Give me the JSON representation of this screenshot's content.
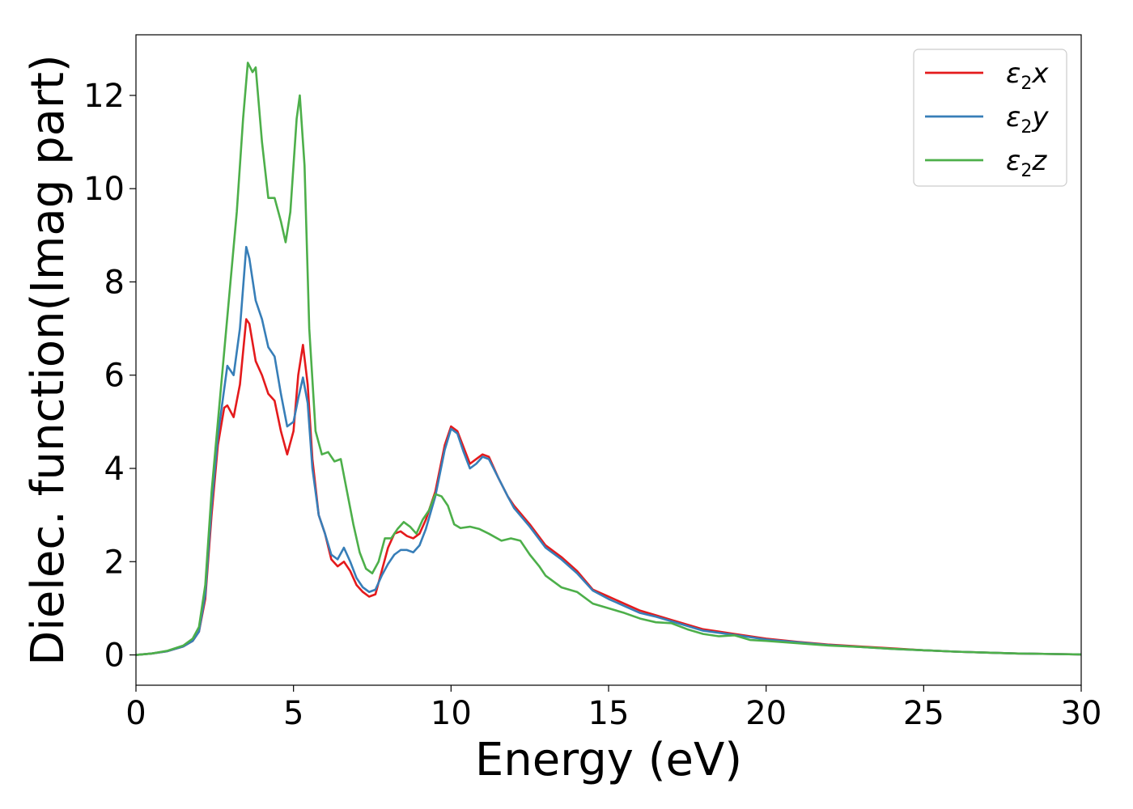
{
  "chart_data": {
    "type": "line",
    "title": "",
    "xlabel": "Energy (eV)",
    "ylabel": "Dielec. function(Imag part)",
    "xlim": [
      0,
      30
    ],
    "ylim": [
      -0.65,
      13.3
    ],
    "xticks": [
      0,
      5,
      10,
      15,
      20,
      25,
      30
    ],
    "yticks": [
      0,
      2,
      4,
      6,
      8,
      10,
      12
    ],
    "grid": false,
    "legend_position": "top-right",
    "series": [
      {
        "name_base": "ε",
        "name_sub": "2",
        "name_suffix": "x",
        "color": "#e41a1c",
        "points": [
          [
            0,
            0
          ],
          [
            0.5,
            0.03
          ],
          [
            1.0,
            0.08
          ],
          [
            1.5,
            0.18
          ],
          [
            1.8,
            0.3
          ],
          [
            2.0,
            0.5
          ],
          [
            2.2,
            1.2
          ],
          [
            2.4,
            3.0
          ],
          [
            2.6,
            4.5
          ],
          [
            2.8,
            5.3
          ],
          [
            2.9,
            5.35
          ],
          [
            3.1,
            5.1
          ],
          [
            3.3,
            5.8
          ],
          [
            3.5,
            7.2
          ],
          [
            3.6,
            7.1
          ],
          [
            3.8,
            6.3
          ],
          [
            4.0,
            6.0
          ],
          [
            4.2,
            5.6
          ],
          [
            4.4,
            5.45
          ],
          [
            4.6,
            4.8
          ],
          [
            4.8,
            4.3
          ],
          [
            5.0,
            4.8
          ],
          [
            5.15,
            6.0
          ],
          [
            5.3,
            6.65
          ],
          [
            5.45,
            5.8
          ],
          [
            5.6,
            4.2
          ],
          [
            5.8,
            3.0
          ],
          [
            6.0,
            2.6
          ],
          [
            6.2,
            2.05
          ],
          [
            6.4,
            1.9
          ],
          [
            6.6,
            2.0
          ],
          [
            6.8,
            1.8
          ],
          [
            7.0,
            1.5
          ],
          [
            7.2,
            1.35
          ],
          [
            7.4,
            1.25
          ],
          [
            7.6,
            1.3
          ],
          [
            7.8,
            1.8
          ],
          [
            8.0,
            2.3
          ],
          [
            8.2,
            2.6
          ],
          [
            8.4,
            2.65
          ],
          [
            8.6,
            2.55
          ],
          [
            8.8,
            2.5
          ],
          [
            9.0,
            2.6
          ],
          [
            9.2,
            2.9
          ],
          [
            9.5,
            3.5
          ],
          [
            9.8,
            4.5
          ],
          [
            10.0,
            4.9
          ],
          [
            10.2,
            4.8
          ],
          [
            10.4,
            4.45
          ],
          [
            10.6,
            4.1
          ],
          [
            10.8,
            4.2
          ],
          [
            11.0,
            4.3
          ],
          [
            11.2,
            4.25
          ],
          [
            11.5,
            3.8
          ],
          [
            11.8,
            3.4
          ],
          [
            12.0,
            3.2
          ],
          [
            12.5,
            2.8
          ],
          [
            13.0,
            2.35
          ],
          [
            13.5,
            2.1
          ],
          [
            14.0,
            1.8
          ],
          [
            14.5,
            1.4
          ],
          [
            15.0,
            1.25
          ],
          [
            15.5,
            1.1
          ],
          [
            16.0,
            0.95
          ],
          [
            16.5,
            0.85
          ],
          [
            17.0,
            0.75
          ],
          [
            17.5,
            0.65
          ],
          [
            18.0,
            0.55
          ],
          [
            19.0,
            0.45
          ],
          [
            20.0,
            0.35
          ],
          [
            21.0,
            0.28
          ],
          [
            22.0,
            0.22
          ],
          [
            23.0,
            0.18
          ],
          [
            24.0,
            0.14
          ],
          [
            25.0,
            0.1
          ],
          [
            26.0,
            0.07
          ],
          [
            27.0,
            0.05
          ],
          [
            28.0,
            0.03
          ],
          [
            29.0,
            0.02
          ],
          [
            30.0,
            0.01
          ]
        ]
      },
      {
        "name_base": "ε",
        "name_sub": "2",
        "name_suffix": "y",
        "color": "#377eb8",
        "points": [
          [
            0,
            0
          ],
          [
            0.5,
            0.03
          ],
          [
            1.0,
            0.08
          ],
          [
            1.5,
            0.18
          ],
          [
            1.8,
            0.3
          ],
          [
            2.0,
            0.5
          ],
          [
            2.2,
            1.3
          ],
          [
            2.4,
            3.2
          ],
          [
            2.6,
            4.7
          ],
          [
            2.8,
            5.7
          ],
          [
            2.9,
            6.2
          ],
          [
            3.1,
            6.0
          ],
          [
            3.3,
            7.0
          ],
          [
            3.5,
            8.75
          ],
          [
            3.6,
            8.5
          ],
          [
            3.8,
            7.6
          ],
          [
            4.0,
            7.2
          ],
          [
            4.2,
            6.6
          ],
          [
            4.4,
            6.4
          ],
          [
            4.6,
            5.6
          ],
          [
            4.8,
            4.9
          ],
          [
            5.0,
            5.0
          ],
          [
            5.15,
            5.5
          ],
          [
            5.3,
            5.95
          ],
          [
            5.45,
            5.4
          ],
          [
            5.6,
            4.0
          ],
          [
            5.8,
            3.0
          ],
          [
            6.0,
            2.6
          ],
          [
            6.2,
            2.15
          ],
          [
            6.4,
            2.05
          ],
          [
            6.6,
            2.3
          ],
          [
            6.8,
            2.0
          ],
          [
            7.0,
            1.65
          ],
          [
            7.2,
            1.45
          ],
          [
            7.4,
            1.35
          ],
          [
            7.6,
            1.4
          ],
          [
            7.8,
            1.7
          ],
          [
            8.0,
            1.95
          ],
          [
            8.2,
            2.15
          ],
          [
            8.4,
            2.25
          ],
          [
            8.6,
            2.25
          ],
          [
            8.8,
            2.2
          ],
          [
            9.0,
            2.35
          ],
          [
            9.2,
            2.7
          ],
          [
            9.5,
            3.4
          ],
          [
            9.8,
            4.4
          ],
          [
            10.0,
            4.85
          ],
          [
            10.2,
            4.75
          ],
          [
            10.4,
            4.35
          ],
          [
            10.6,
            4.0
          ],
          [
            10.8,
            4.1
          ],
          [
            11.0,
            4.25
          ],
          [
            11.2,
            4.2
          ],
          [
            11.5,
            3.8
          ],
          [
            11.8,
            3.4
          ],
          [
            12.0,
            3.15
          ],
          [
            12.5,
            2.75
          ],
          [
            13.0,
            2.3
          ],
          [
            13.5,
            2.05
          ],
          [
            14.0,
            1.75
          ],
          [
            14.5,
            1.38
          ],
          [
            15.0,
            1.2
          ],
          [
            15.5,
            1.05
          ],
          [
            16.0,
            0.9
          ],
          [
            16.5,
            0.82
          ],
          [
            17.0,
            0.72
          ],
          [
            17.5,
            0.62
          ],
          [
            18.0,
            0.52
          ],
          [
            19.0,
            0.43
          ],
          [
            20.0,
            0.33
          ],
          [
            21.0,
            0.27
          ],
          [
            22.0,
            0.21
          ],
          [
            23.0,
            0.17
          ],
          [
            24.0,
            0.13
          ],
          [
            25.0,
            0.1
          ],
          [
            26.0,
            0.07
          ],
          [
            27.0,
            0.05
          ],
          [
            28.0,
            0.03
          ],
          [
            29.0,
            0.02
          ],
          [
            30.0,
            0.01
          ]
        ]
      },
      {
        "name_base": "ε",
        "name_sub": "2",
        "name_suffix": "z",
        "color": "#4daf4a",
        "points": [
          [
            0,
            0
          ],
          [
            0.5,
            0.03
          ],
          [
            1.0,
            0.09
          ],
          [
            1.5,
            0.2
          ],
          [
            1.8,
            0.35
          ],
          [
            2.0,
            0.6
          ],
          [
            2.2,
            1.5
          ],
          [
            2.4,
            3.5
          ],
          [
            2.6,
            5.0
          ],
          [
            2.8,
            6.5
          ],
          [
            3.0,
            8.0
          ],
          [
            3.2,
            9.5
          ],
          [
            3.4,
            11.5
          ],
          [
            3.55,
            12.7
          ],
          [
            3.7,
            12.5
          ],
          [
            3.8,
            12.6
          ],
          [
            4.0,
            11.0
          ],
          [
            4.2,
            9.8
          ],
          [
            4.4,
            9.8
          ],
          [
            4.6,
            9.3
          ],
          [
            4.75,
            8.85
          ],
          [
            4.9,
            9.5
          ],
          [
            5.1,
            11.5
          ],
          [
            5.2,
            12.0
          ],
          [
            5.35,
            10.5
          ],
          [
            5.5,
            7.0
          ],
          [
            5.7,
            4.8
          ],
          [
            5.9,
            4.3
          ],
          [
            6.1,
            4.35
          ],
          [
            6.3,
            4.15
          ],
          [
            6.5,
            4.2
          ],
          [
            6.7,
            3.5
          ],
          [
            6.9,
            2.8
          ],
          [
            7.1,
            2.2
          ],
          [
            7.3,
            1.85
          ],
          [
            7.5,
            1.75
          ],
          [
            7.7,
            2.0
          ],
          [
            7.9,
            2.5
          ],
          [
            8.1,
            2.5
          ],
          [
            8.3,
            2.7
          ],
          [
            8.5,
            2.85
          ],
          [
            8.7,
            2.75
          ],
          [
            8.9,
            2.6
          ],
          [
            9.1,
            2.9
          ],
          [
            9.3,
            3.1
          ],
          [
            9.5,
            3.45
          ],
          [
            9.7,
            3.4
          ],
          [
            9.9,
            3.2
          ],
          [
            10.1,
            2.8
          ],
          [
            10.3,
            2.72
          ],
          [
            10.6,
            2.75
          ],
          [
            10.9,
            2.7
          ],
          [
            11.2,
            2.6
          ],
          [
            11.6,
            2.45
          ],
          [
            11.9,
            2.5
          ],
          [
            12.2,
            2.45
          ],
          [
            12.5,
            2.15
          ],
          [
            12.8,
            1.9
          ],
          [
            13.0,
            1.7
          ],
          [
            13.5,
            1.45
          ],
          [
            14.0,
            1.35
          ],
          [
            14.5,
            1.1
          ],
          [
            15.0,
            1.0
          ],
          [
            15.5,
            0.9
          ],
          [
            16.0,
            0.78
          ],
          [
            16.5,
            0.7
          ],
          [
            17.0,
            0.68
          ],
          [
            17.5,
            0.55
          ],
          [
            18.0,
            0.45
          ],
          [
            18.5,
            0.4
          ],
          [
            19.0,
            0.42
          ],
          [
            19.5,
            0.32
          ],
          [
            20.0,
            0.3
          ],
          [
            21.0,
            0.25
          ],
          [
            22.0,
            0.2
          ],
          [
            23.0,
            0.17
          ],
          [
            24.0,
            0.13
          ],
          [
            25.0,
            0.1
          ],
          [
            26.0,
            0.07
          ],
          [
            27.0,
            0.05
          ],
          [
            28.0,
            0.03
          ],
          [
            29.0,
            0.02
          ],
          [
            30.0,
            0.01
          ]
        ]
      }
    ]
  }
}
